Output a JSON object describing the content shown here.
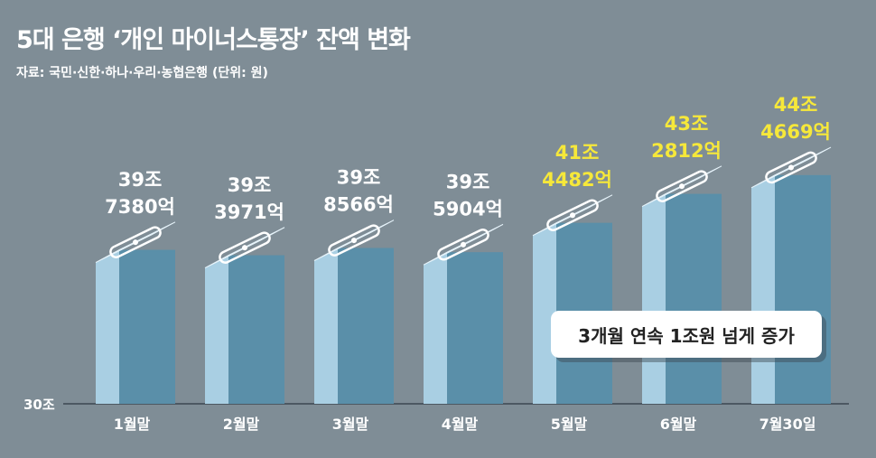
{
  "title": "5대 은행 ‘개인 마이너스통장’ 잔액 변화",
  "source": "자료: 국민·신한·하나·우리·농협은행 (단위: 원)",
  "callout": "3개월 연속 1조원 넘게 증가",
  "colors": {
    "background": "#7f8d96",
    "bar_front": "#5a8fa9",
    "bar_side": "#a9cfe3",
    "bar_top": "#c6e2f2",
    "label_normal": "#ffffff",
    "label_highlight": "#f6e83a",
    "card_icon": "bank-card-icon"
  },
  "chart_data": {
    "type": "bar",
    "title": "5대 은행 ‘개인 마이너스통장’ 잔액 변화",
    "unit": "원",
    "categories": [
      "1월말",
      "2월말",
      "3월말",
      "4월말",
      "5월말",
      "6월말",
      "7월30일"
    ],
    "values_jo": [
      39.738,
      39.3971,
      39.8566,
      39.5904,
      41.4482,
      43.2812,
      44.4669
    ],
    "value_labels": [
      [
        "39조",
        "7380억"
      ],
      [
        "39조",
        "3971억"
      ],
      [
        "39조",
        "8566억"
      ],
      [
        "39조",
        "5904억"
      ],
      [
        "41조",
        "4482억"
      ],
      [
        "43조",
        "2812억"
      ],
      [
        "44조",
        "4669억"
      ]
    ],
    "highlighted": [
      false,
      false,
      false,
      false,
      true,
      true,
      true
    ],
    "y_axis_label": "30조",
    "ylim": [
      30,
      45
    ],
    "grid": false,
    "legend": "none"
  }
}
